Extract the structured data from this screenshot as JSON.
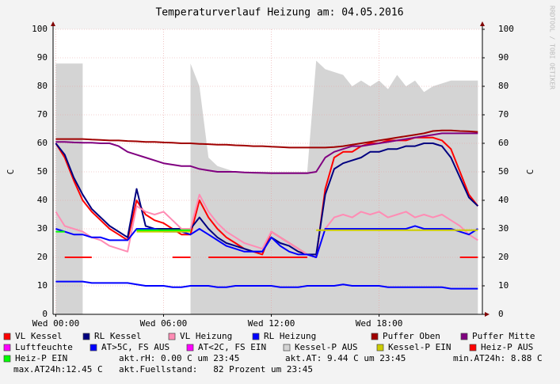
{
  "chart_data": {
    "type": "line",
    "title": "Temperaturverlauf Heizung am: 04.05.2016",
    "ylabel": "C",
    "y2label": "C",
    "watermark": "RRDTOOL / TOBI OETIKER",
    "xlim": [
      -0.15,
      23.75
    ],
    "xticks": [
      {
        "value": 0,
        "label": "Wed 00:00"
      },
      {
        "value": 6,
        "label": "Wed 06:00"
      },
      {
        "value": 12,
        "label": "Wed 12:00"
      },
      {
        "value": 18,
        "label": "Wed 18:00"
      }
    ],
    "ylim": [
      0,
      100
    ],
    "yticks": [
      0,
      10,
      20,
      30,
      40,
      50,
      60,
      70,
      80,
      90,
      100
    ],
    "y2lim": [
      0,
      100
    ],
    "y2ticks": [
      0,
      10,
      20,
      30,
      40,
      50,
      60,
      70,
      80,
      90,
      100
    ],
    "grid": true,
    "x": [
      0,
      0.5,
      1,
      1.5,
      2,
      2.5,
      3,
      3.5,
      4,
      4.5,
      5,
      5.5,
      6,
      6.5,
      7,
      7.5,
      8,
      8.5,
      9,
      9.5,
      10,
      10.5,
      11,
      11.5,
      12,
      12.5,
      13,
      13.5,
      14,
      14.5,
      15,
      15.5,
      16,
      16.5,
      17,
      17.5,
      18,
      18.5,
      19,
      19.5,
      20,
      20.5,
      21,
      21.5,
      22,
      22.5,
      23,
      23.5
    ],
    "series": [
      {
        "name": "VL Kessel",
        "color": "#ff0000",
        "values": [
          60,
          55,
          47,
          40,
          36,
          33,
          30,
          28,
          26,
          40,
          35,
          33,
          32,
          30,
          28,
          28,
          40,
          34,
          30,
          27,
          25,
          23,
          22,
          21,
          29,
          27,
          25,
          23,
          21,
          20,
          44,
          55,
          57,
          57,
          59,
          60,
          60,
          61,
          61,
          61,
          62,
          62,
          62,
          61,
          58,
          50,
          42,
          38
        ]
      },
      {
        "name": "RL Kessel",
        "color": "#000080",
        "values": [
          60,
          56,
          48,
          42,
          37,
          34,
          31,
          29,
          27,
          44,
          31,
          30,
          30,
          30,
          30,
          30,
          34,
          30,
          27,
          25,
          24,
          23,
          22,
          22,
          27,
          25,
          24,
          22,
          21,
          21,
          42,
          51,
          53,
          54,
          55,
          57,
          57,
          58,
          58,
          59,
          59,
          60,
          60,
          59,
          55,
          48,
          41,
          38
        ]
      },
      {
        "name": "VL Heizung",
        "color": "#ff8cb4",
        "values": [
          36,
          31,
          30,
          29,
          27,
          26,
          24,
          23,
          22,
          38,
          36,
          35,
          36,
          33,
          30,
          30,
          42,
          36,
          32,
          29,
          27,
          25,
          24,
          23,
          29,
          27,
          25,
          23,
          21,
          20,
          30,
          34,
          35,
          34,
          36,
          35,
          36,
          34,
          35,
          36,
          34,
          35,
          34,
          35,
          33,
          31,
          28,
          26
        ]
      },
      {
        "name": "RL Heizung",
        "color": "#0000ff",
        "values": [
          30,
          29,
          28,
          28,
          27,
          27,
          26,
          26,
          26,
          30,
          30,
          30,
          29,
          29,
          29,
          28,
          30,
          28,
          26,
          24,
          23,
          22,
          22,
          22,
          27,
          24,
          22,
          21,
          21,
          20,
          30,
          30,
          30,
          30,
          30,
          30,
          30,
          30,
          30,
          30,
          31,
          30,
          30,
          30,
          30,
          29,
          28,
          30
        ]
      },
      {
        "name": "Puffer Oben",
        "color": "#a00000",
        "values": [
          61.5,
          61.5,
          61.5,
          61.5,
          61.3,
          61.2,
          61,
          61,
          60.8,
          60.7,
          60.5,
          60.5,
          60.3,
          60.2,
          60,
          60,
          59.8,
          59.7,
          59.5,
          59.5,
          59.3,
          59.2,
          59,
          59,
          58.8,
          58.7,
          58.5,
          58.5,
          58.5,
          58.5,
          58.5,
          58.7,
          59,
          59.5,
          60,
          60.5,
          61,
          61.5,
          62,
          62.5,
          63,
          63.5,
          64.3,
          64.5,
          64.5,
          64.3,
          64.2,
          64
        ]
      },
      {
        "name": "Puffer Mitte",
        "color": "#800080",
        "values": [
          60.5,
          60.5,
          60.3,
          60.2,
          60.2,
          60,
          60,
          59,
          57,
          56,
          55,
          54,
          53,
          52.5,
          52,
          52,
          51,
          50.5,
          50,
          50,
          50,
          49.8,
          49.7,
          49.6,
          49.5,
          49.5,
          49.5,
          49.5,
          49.5,
          50,
          55,
          57,
          58,
          59,
          59,
          59.5,
          60,
          60.5,
          61,
          61.5,
          62,
          62.5,
          63,
          63.5,
          63.5,
          63.5,
          63.5,
          63.5
        ]
      },
      {
        "name": "Luftfeuchte",
        "color": "#ff00ff",
        "values": [
          null,
          null,
          null,
          null,
          null,
          null,
          null,
          null,
          null,
          null,
          null,
          null,
          null,
          null,
          null,
          null,
          null,
          null,
          null,
          null,
          null,
          null,
          null,
          null,
          null,
          null,
          null,
          null,
          null,
          null,
          null,
          null,
          null,
          null,
          null,
          null,
          null,
          null,
          null,
          null,
          null,
          null,
          null,
          null,
          null,
          null,
          null,
          null
        ]
      },
      {
        "name": "AT>5C, FS AUS",
        "color": "#0000ff",
        "values": [
          11.5,
          11.5,
          11.5,
          11.5,
          11,
          11,
          11,
          11,
          11,
          10.5,
          10,
          10,
          10,
          9.5,
          9.5,
          10,
          10,
          10,
          9.5,
          9.5,
          10,
          10,
          10,
          10,
          10,
          9.5,
          9.5,
          9.5,
          10,
          10,
          10,
          10,
          10.5,
          10,
          10,
          10,
          10,
          9.5,
          9.5,
          9.5,
          9.5,
          9.5,
          9.5,
          9.5,
          9,
          9,
          9,
          9
        ]
      },
      {
        "name": "AT<2C, FS EIN",
        "color": "#ff00ff",
        "values": [
          null,
          null,
          null,
          null,
          null,
          null,
          null,
          null,
          null,
          null,
          null,
          null,
          null,
          null,
          null,
          null,
          null,
          null,
          null,
          null,
          null,
          null,
          null,
          null,
          null,
          null,
          null,
          null,
          null,
          null,
          null,
          null,
          null,
          null,
          null,
          null,
          null,
          null,
          null,
          null,
          null,
          null,
          null,
          null,
          null,
          null,
          null,
          null
        ]
      },
      {
        "name": "Kessel-P AUS",
        "color": "#d4d4d4",
        "area": true,
        "values": [
          88,
          88,
          88,
          88,
          null,
          null,
          null,
          null,
          null,
          null,
          null,
          null,
          null,
          null,
          null,
          88,
          80,
          55,
          52,
          51,
          50,
          50,
          50,
          50,
          50,
          50,
          50,
          50,
          50,
          89,
          86,
          85,
          84,
          80,
          82,
          80,
          82,
          79,
          84,
          80,
          82,
          78,
          80,
          81,
          82,
          82,
          82,
          82
        ]
      },
      {
        "name": "Kessel-P EIN",
        "color": "#cccc00",
        "values": [
          null,
          null,
          null,
          null,
          null,
          null,
          null,
          null,
          null,
          29,
          29,
          29,
          29,
          29,
          29,
          29,
          null,
          null,
          null,
          null,
          null,
          null,
          null,
          null,
          null,
          null,
          null,
          null,
          null,
          29.5,
          29.5,
          29.5,
          29.5,
          29.5,
          29.5,
          29.5,
          29.5,
          29.5,
          29.5,
          29.5,
          29.5,
          29.5,
          29.5,
          29.5,
          29.5,
          29.5,
          29.5,
          29.5
        ]
      },
      {
        "name": "Heiz-P AUS",
        "color": "#ff0000",
        "values": [
          null,
          20,
          20,
          20,
          20,
          null,
          null,
          null,
          null,
          null,
          null,
          null,
          null,
          20,
          20,
          20,
          null,
          20,
          20,
          20,
          20,
          20,
          20,
          20,
          20,
          20,
          20,
          20,
          20,
          null,
          null,
          null,
          null,
          null,
          null,
          null,
          null,
          null,
          null,
          null,
          null,
          null,
          null,
          null,
          null,
          20,
          20,
          20
        ]
      },
      {
        "name": "Heiz-P EIN",
        "color": "#00ff00",
        "values": [
          29,
          29,
          null,
          null,
          null,
          null,
          null,
          null,
          null,
          29.5,
          29.5,
          29.5,
          29.5,
          29.5,
          29.5,
          29.5,
          null,
          null,
          null,
          null,
          null,
          null,
          null,
          null,
          null,
          null,
          null,
          null,
          null,
          null,
          null,
          null,
          null,
          null,
          null,
          null,
          null,
          null,
          null,
          null,
          null,
          null,
          null,
          null,
          null,
          null,
          null,
          null
        ]
      }
    ],
    "footer": [
      "akt.rH: 0.00 C um 23:45",
      "akt.AT: 9.44 C um 23:45",
      "min.AT24h: 8.88 C",
      "max.AT24h:12.45 C",
      "akt.Fuellstand:   82 Prozent um 23:45"
    ]
  }
}
